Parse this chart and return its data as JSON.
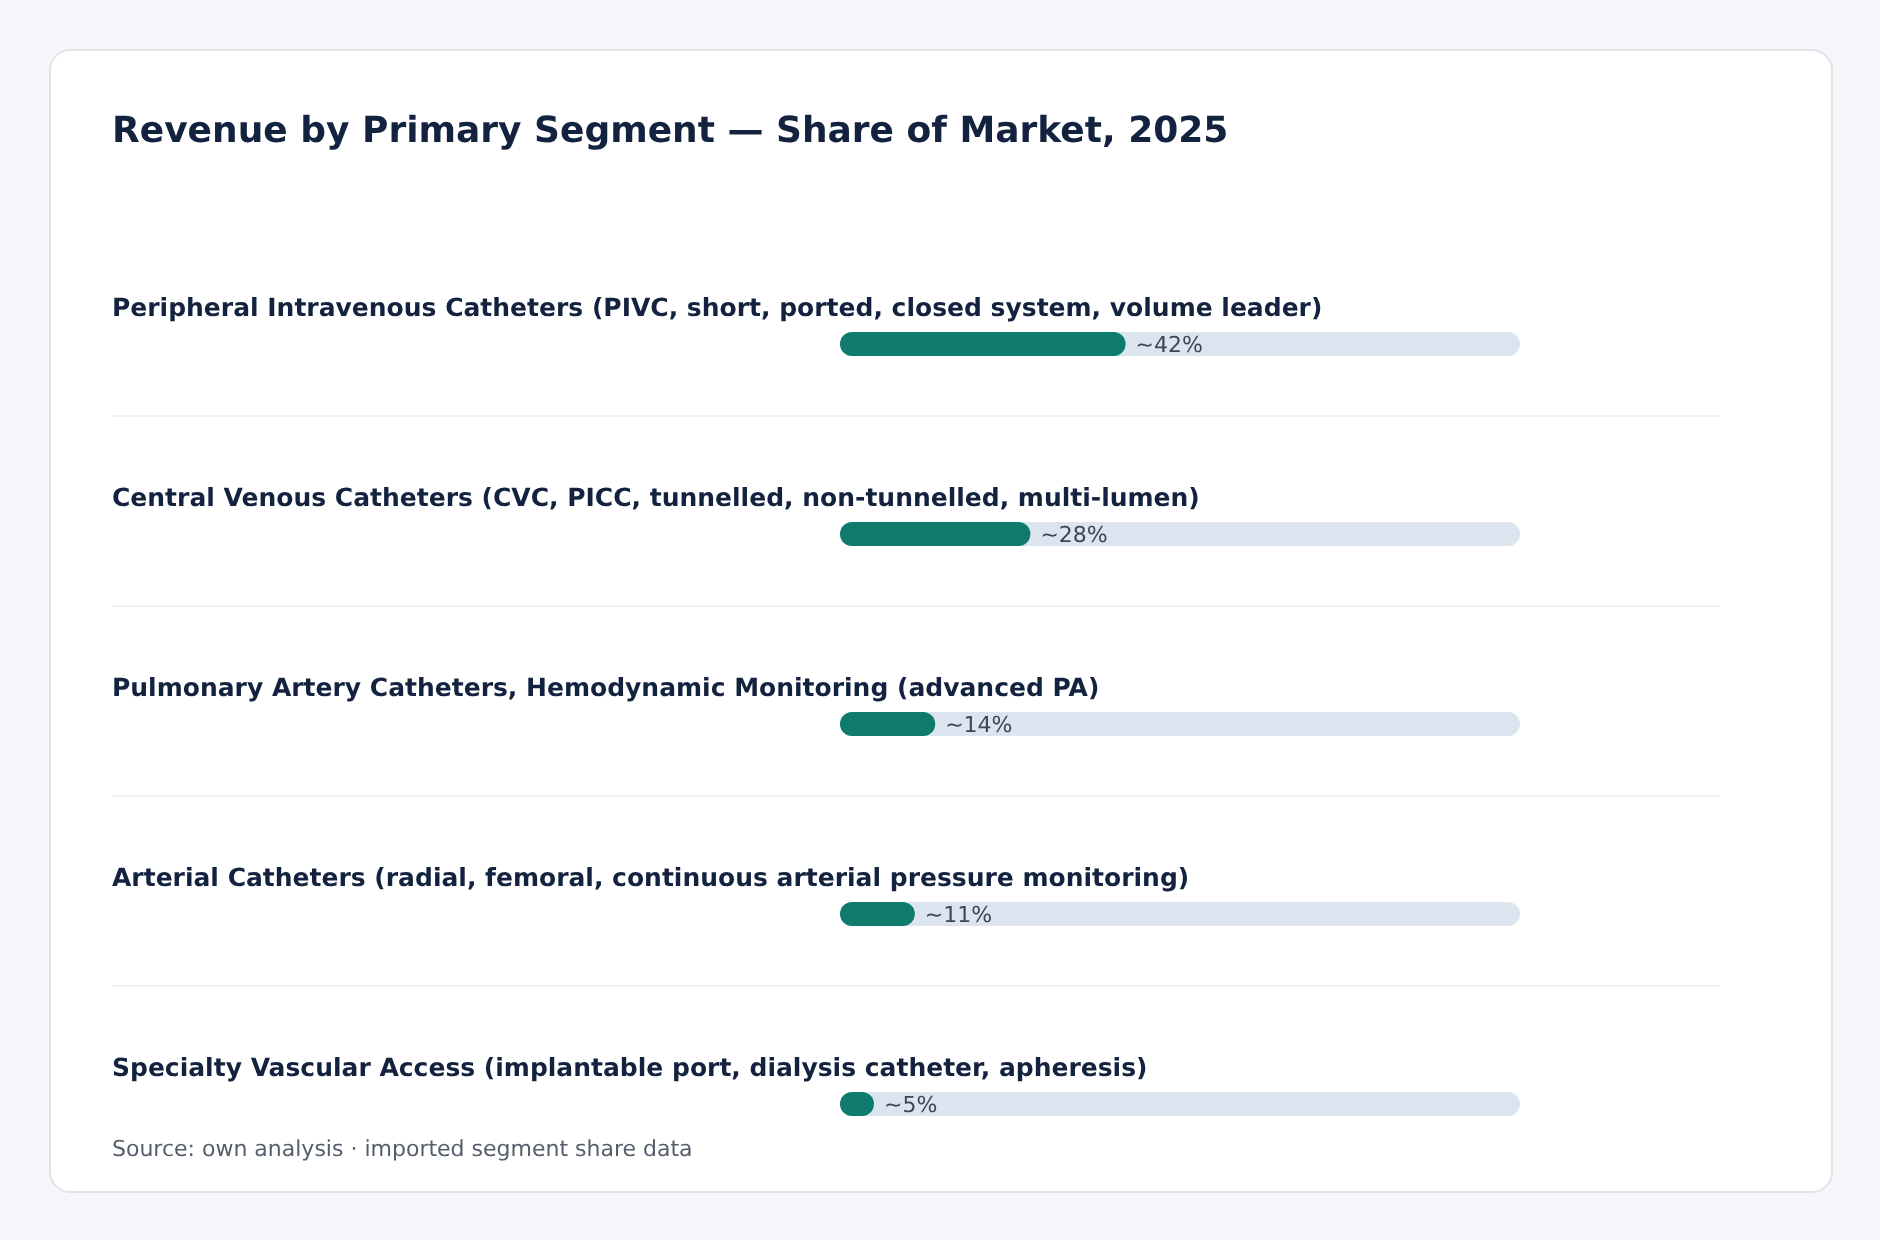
{
  "chart_data": {
    "type": "bar",
    "orientation": "horizontal",
    "title": "Revenue by Primary Segment — Share of Market, 2025",
    "categories": [
      "Peripheral Intravenous Catheters (PIVC, short, ported, closed system, volume leader)",
      "Central Venous Catheters (CVC, PICC, tunnelled, non-tunnelled, multi-lumen)",
      "Pulmonary Artery Catheters, Hemodynamic Monitoring (advanced PA)",
      "Arterial Catheters (radial, femoral, continuous arterial pressure monitoring)",
      "Specialty Vascular Access (implantable port, dialysis catheter, apheresis)"
    ],
    "values": [
      42,
      28,
      14,
      11,
      5
    ],
    "value_labels": [
      "~42%",
      "~28%",
      "~14%",
      "~11%",
      "~5%"
    ],
    "color": "#0f7b6c",
    "annotations": [
      "Source: own analysis · imported segment share data"
    ]
  }
}
